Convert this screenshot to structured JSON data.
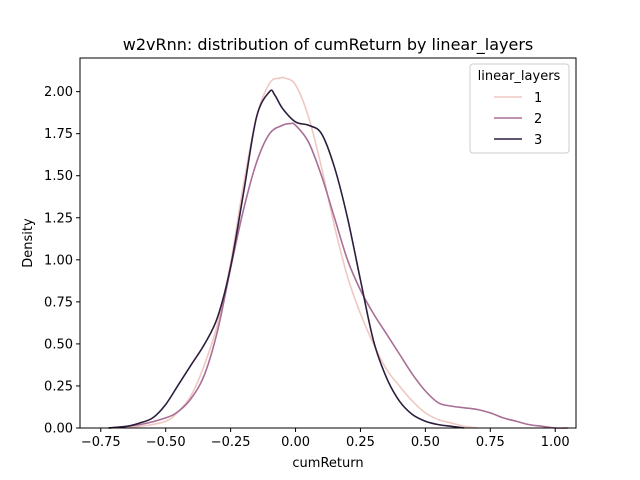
{
  "chart_data": {
    "type": "line",
    "title": "w2vRnn: distribution of cumReturn by linear_layers",
    "xlabel": "cumReturn",
    "ylabel": "Density",
    "xlim": [
      -0.83,
      1.08
    ],
    "ylim": [
      0.0,
      2.2
    ],
    "xticks": [
      -0.75,
      -0.5,
      -0.25,
      0.0,
      0.25,
      0.5,
      0.75,
      1.0
    ],
    "xtick_labels": [
      "−0.75",
      "−0.50",
      "−0.25",
      "0.00",
      "0.25",
      "0.50",
      "0.75",
      "1.00"
    ],
    "yticks": [
      0.0,
      0.25,
      0.5,
      0.75,
      1.0,
      1.25,
      1.5,
      1.75,
      2.0
    ],
    "ytick_labels": [
      "0.00",
      "0.25",
      "0.50",
      "0.75",
      "1.00",
      "1.25",
      "1.50",
      "1.75",
      "2.00"
    ],
    "grid": false,
    "legend": {
      "title": "linear_layers",
      "position": "top-right"
    },
    "series": [
      {
        "name": "1",
        "color": "#efc8c2",
        "x": [
          -0.72,
          -0.6,
          -0.5,
          -0.45,
          -0.4,
          -0.35,
          -0.3,
          -0.25,
          -0.2,
          -0.15,
          -0.1,
          -0.06,
          -0.04,
          0.0,
          0.05,
          0.1,
          0.15,
          0.2,
          0.25,
          0.3,
          0.35,
          0.4,
          0.45,
          0.5,
          0.55,
          0.6,
          0.65,
          0.7
        ],
        "y": [
          0.0,
          0.01,
          0.04,
          0.1,
          0.2,
          0.38,
          0.62,
          0.98,
          1.45,
          1.85,
          2.05,
          2.08,
          2.08,
          2.04,
          1.85,
          1.55,
          1.2,
          0.9,
          0.68,
          0.5,
          0.35,
          0.25,
          0.16,
          0.09,
          0.05,
          0.03,
          0.01,
          0.0
        ]
      },
      {
        "name": "2",
        "color": "#a96e95",
        "x": [
          -0.72,
          -0.6,
          -0.5,
          -0.45,
          -0.4,
          -0.35,
          -0.3,
          -0.25,
          -0.2,
          -0.15,
          -0.1,
          -0.05,
          -0.02,
          0.0,
          0.05,
          0.1,
          0.15,
          0.2,
          0.25,
          0.3,
          0.35,
          0.4,
          0.45,
          0.5,
          0.55,
          0.6,
          0.65,
          0.7,
          0.75,
          0.8,
          0.85,
          0.9,
          0.95,
          1.0,
          1.05
        ],
        "y": [
          0.0,
          0.02,
          0.06,
          0.1,
          0.18,
          0.32,
          0.58,
          0.95,
          1.3,
          1.58,
          1.75,
          1.8,
          1.81,
          1.8,
          1.7,
          1.5,
          1.25,
          1.0,
          0.82,
          0.68,
          0.56,
          0.44,
          0.32,
          0.22,
          0.15,
          0.13,
          0.12,
          0.11,
          0.09,
          0.06,
          0.04,
          0.02,
          0.01,
          0.0,
          0.0
        ]
      },
      {
        "name": "3",
        "color": "#2d1e3e",
        "x": [
          -0.72,
          -0.65,
          -0.6,
          -0.55,
          -0.5,
          -0.45,
          -0.4,
          -0.35,
          -0.3,
          -0.25,
          -0.2,
          -0.15,
          -0.1,
          -0.08,
          -0.05,
          0.0,
          0.05,
          0.1,
          0.15,
          0.2,
          0.25,
          0.3,
          0.35,
          0.4,
          0.45,
          0.5,
          0.55,
          0.6,
          0.65
        ],
        "y": [
          0.0,
          0.01,
          0.03,
          0.06,
          0.14,
          0.26,
          0.38,
          0.5,
          0.66,
          0.96,
          1.4,
          1.85,
          2.0,
          1.98,
          1.9,
          1.82,
          1.8,
          1.75,
          1.55,
          1.25,
          0.88,
          0.52,
          0.3,
          0.16,
          0.08,
          0.04,
          0.02,
          0.01,
          0.0
        ]
      }
    ]
  }
}
